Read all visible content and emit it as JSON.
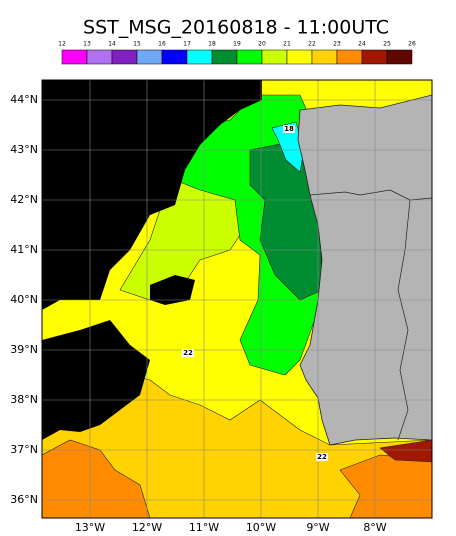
{
  "title": "SST_MSG_20160818 - 11:00UTC",
  "colorbar": {
    "ticks": [
      12,
      13,
      14,
      15,
      16,
      17,
      18,
      19,
      20,
      21,
      22,
      23,
      24,
      25,
      26
    ],
    "colors": [
      "#ff00ff",
      "#b070f0",
      "#8020c0",
      "#70a8f8",
      "#0000ff",
      "#00ffff",
      "#008c30",
      "#00ff00",
      "#ccff00",
      "#ffff00",
      "#ffd200",
      "#ff8c00",
      "#a01800",
      "#600800"
    ]
  },
  "map": {
    "lat_labels": [
      "44°N",
      "43°N",
      "42°N",
      "41°N",
      "40°N",
      "39°N",
      "38°N",
      "37°N",
      "36°N"
    ],
    "lon_labels": [
      "13°W",
      "12°W",
      "11°W",
      "10°W",
      "9°W",
      "8°W"
    ],
    "contour_labels": [
      "18",
      "22",
      "22"
    ]
  }
}
